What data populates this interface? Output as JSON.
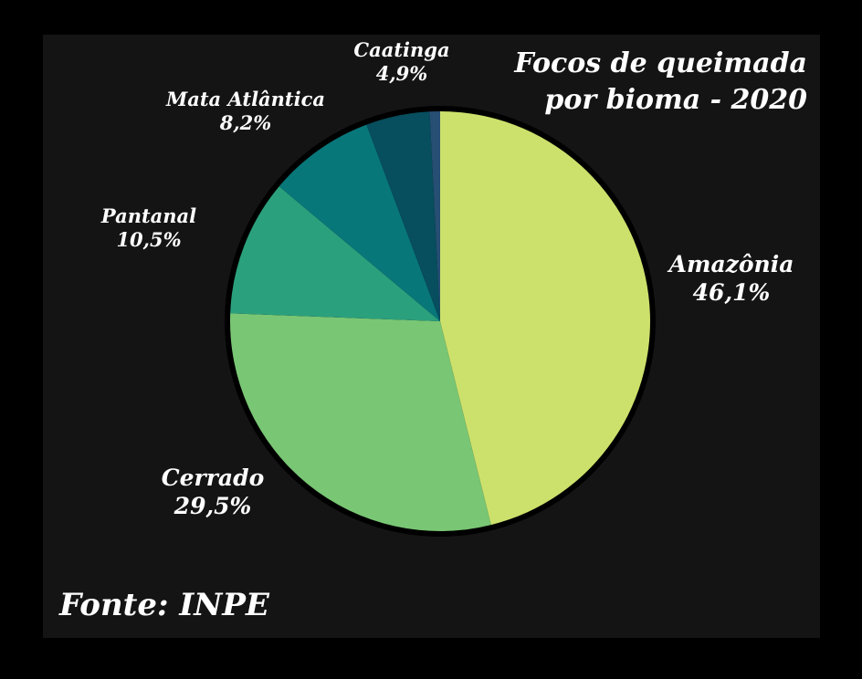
{
  "chart_data": {
    "type": "pie",
    "title_line1": "Focos de queimada",
    "title_line2": "por bioma - 2020",
    "source": "Fonte: INPE",
    "slices": [
      {
        "name": "Amazônia",
        "value": 46.1,
        "label": "46,1%",
        "color": "#cce16b"
      },
      {
        "name": "Cerrado",
        "value": 29.5,
        "label": "29,5%",
        "color": "#79c674"
      },
      {
        "name": "Pantanal",
        "value": 10.5,
        "label": "10,5%",
        "color": "#2ba07d"
      },
      {
        "name": "Mata Atlântica",
        "value": 8.2,
        "label": "8,2%",
        "color": "#08777a"
      },
      {
        "name": "Caatinga",
        "value": 4.9,
        "label": "4,9%",
        "color": "#074e5e"
      },
      {
        "name": "",
        "value": 0.8,
        "label": "",
        "color": "#264f73"
      }
    ]
  }
}
